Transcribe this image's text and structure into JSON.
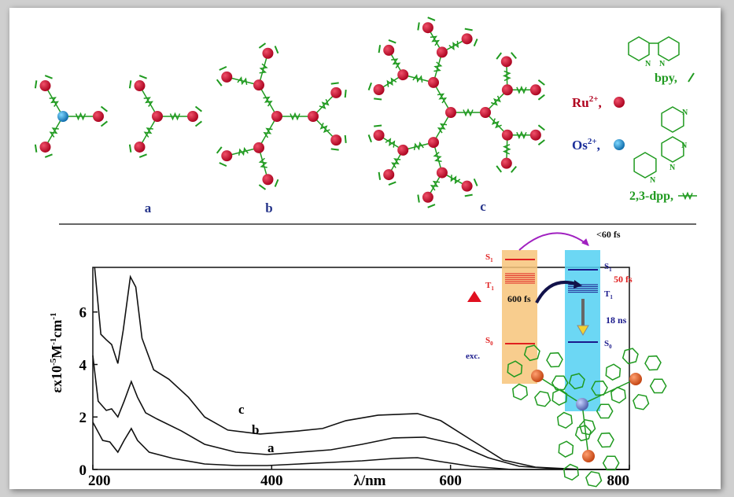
{
  "figure": {
    "structure_labels": [
      "a",
      "b",
      "c"
    ],
    "legend": {
      "ru": {
        "symbol": "Ru",
        "charge": "2+",
        "sep": ","
      },
      "os": {
        "symbol": "Os",
        "charge": "2+",
        "sep": ","
      },
      "bpy": "bpy,",
      "dpp": "2,3-dpp,"
    },
    "ring_atom": "N"
  },
  "chart_data": {
    "type": "line",
    "xlabel": "λ/nm",
    "ylabel": [
      {
        "text": "εx10"
      },
      {
        "text": "-5",
        "sup": true
      },
      {
        "text": "M"
      },
      {
        "text": "-1",
        "sup": true
      },
      {
        "text": "cm"
      },
      {
        "text": "-1",
        "sup": true
      }
    ],
    "xlim": [
      200,
      800
    ],
    "ylim": [
      0,
      7.7
    ],
    "xticks": [
      200,
      400,
      600,
      800
    ],
    "yticks": [
      0,
      2,
      4,
      6
    ],
    "series": [
      {
        "name": "a",
        "color": "#111111",
        "x": [
          200,
          211,
          219,
          228,
          235,
          243,
          250,
          263,
          290,
          325,
          360,
          395,
          431,
          466,
          501,
          536,
          563,
          589,
          624,
          668,
          800
        ],
        "values": [
          1.8,
          1.11,
          1.05,
          0.66,
          1.11,
          1.56,
          1.11,
          0.66,
          0.42,
          0.21,
          0.15,
          0.15,
          0.21,
          0.27,
          0.33,
          0.42,
          0.45,
          0.3,
          0.12,
          0,
          0
        ]
      },
      {
        "name": "b",
        "color": "#111111",
        "x": [
          200,
          206,
          215,
          221,
          228,
          235,
          243,
          250,
          259,
          272,
          299,
          325,
          360,
          395,
          431,
          466,
          501,
          536,
          571,
          607,
          642,
          677,
          730,
          800
        ],
        "values": [
          4.34,
          2.6,
          2.25,
          2.31,
          2.0,
          2.6,
          3.35,
          2.75,
          2.16,
          1.92,
          1.47,
          0.96,
          0.66,
          0.57,
          0.66,
          0.75,
          0.96,
          1.2,
          1.23,
          0.96,
          0.45,
          0.12,
          0,
          0
        ]
      },
      {
        "name": "c",
        "color": "#111111",
        "x": [
          202,
          209,
          215,
          221,
          228,
          234,
          242,
          248,
          255,
          268,
          285,
          307,
          325,
          351,
          387,
          431,
          457,
          483,
          519,
          563,
          589,
          624,
          659,
          695,
          747,
          800
        ],
        "values": [
          7.7,
          5.15,
          4.94,
          4.76,
          4.04,
          5.3,
          7.34,
          6.95,
          5.0,
          3.8,
          3.44,
          2.75,
          2.0,
          1.5,
          1.35,
          1.47,
          1.56,
          1.86,
          2.07,
          2.13,
          1.86,
          1.11,
          0.36,
          0.09,
          0,
          0
        ]
      }
    ]
  },
  "energy_diagram": {
    "donor_states": [
      {
        "state": "S",
        "index": "1"
      },
      {
        "state": "T",
        "index": "1"
      },
      {
        "state": "S",
        "index": "0"
      }
    ],
    "acceptor_states": [
      {
        "state": "S",
        "index": "1"
      },
      {
        "state": "T",
        "index": "1"
      },
      {
        "state": "S",
        "index": "0"
      }
    ],
    "transfer_time": "<60 fs",
    "isc_time": "600 fs",
    "relax_time": "50 fs",
    "decay_time": "18 ns",
    "excitation": "exc."
  }
}
